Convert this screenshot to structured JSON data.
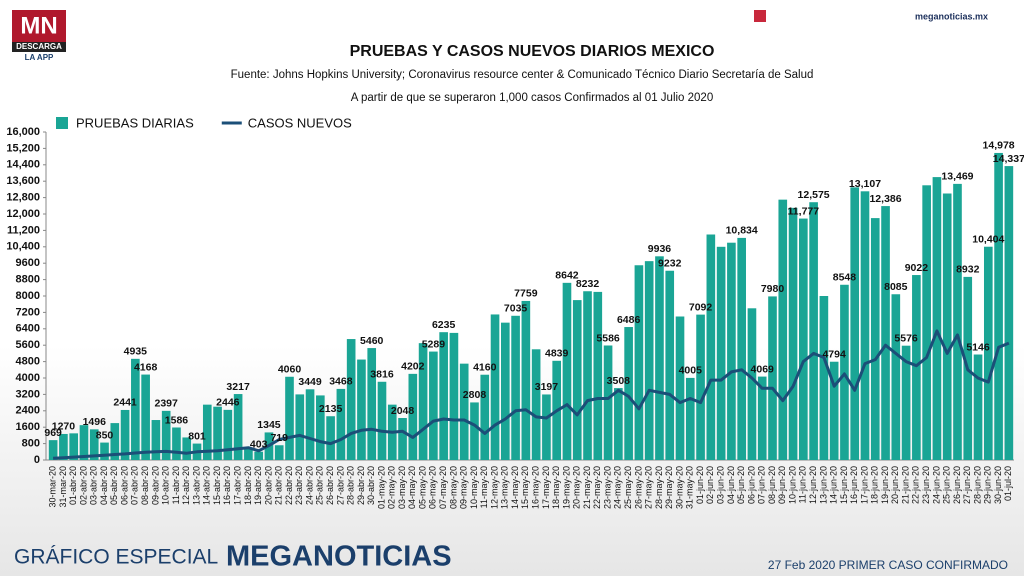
{
  "header": {
    "logo": "MN",
    "logo_band": "DESCARGA",
    "logo_sub": "LA APP",
    "site": "meganoticias.mx"
  },
  "chart_data": {
    "type": "bar",
    "title": "PRUEBAS Y CASOS NUEVOS DIARIOS MEXICO",
    "subtitle": "Fuente: Johns Hopkins University; Coronavirus resource center & Comunicado Técnico Diario Secretaría de Salud",
    "note": "A partir de que se superaron 1,000 casos Confirmados al 01 Julio 2020",
    "categories": [
      "30-mar-20",
      "31-mar-20",
      "01-abr-20",
      "02-abr-20",
      "03-abr-20",
      "04-abr-20",
      "05-abr-20",
      "06-abr-20",
      "07-abr-20",
      "08-abr-20",
      "09-abr-20",
      "10-abr-20",
      "11-abr-20",
      "12-abr-20",
      "13-abr-20",
      "14-abr-20",
      "15-abr-20",
      "16-abr-20",
      "17-abr-20",
      "18-abr-20",
      "19-abr-20",
      "20-abr-20",
      "21-abr-20",
      "22-abr-20",
      "23-abr-20",
      "24-abr-20",
      "25-abr-20",
      "26-abr-20",
      "27-abr-20",
      "28-abr-20",
      "29-abr-20",
      "30-abr-20",
      "01-may-20",
      "02-may-20",
      "03-may-20",
      "04-may-20",
      "05-may-20",
      "06-may-20",
      "07-may-20",
      "08-may-20",
      "09-may-20",
      "10-may-20",
      "11-may-20",
      "12-may-20",
      "13-may-20",
      "14-may-20",
      "15-may-20",
      "16-may-20",
      "17-may-20",
      "18-may-20",
      "19-may-20",
      "20-may-20",
      "21-may-20",
      "22-may-20",
      "23-may-20",
      "24-may-20",
      "25-may-20",
      "26-may-20",
      "27-may-20",
      "28-may-20",
      "29-may-20",
      "30-may-20",
      "31-may-20",
      "01-jun-20",
      "02-jun-20",
      "03-jun-20",
      "04-jun-20",
      "05-jun-20",
      "06-jun-20",
      "07-jun-20",
      "08-jun-20",
      "09-jun-20",
      "10-jun-20",
      "11-jun-20",
      "12-jun-20",
      "13-jun-20",
      "14-jun-20",
      "15-jun-20",
      "16-jun-20",
      "17-jun-20",
      "18-jun-20",
      "19-jun-20",
      "20-jun-20",
      "21-jun-20",
      "22-jun-20",
      "23-jun-20",
      "24-jun-20",
      "25-jun-20",
      "26-jun-20",
      "27-jun-20",
      "28-jun-20",
      "29-jun-20",
      "30-jun-20",
      "01-jul-20"
    ],
    "series": [
      {
        "name": "PRUEBAS DIARIAS",
        "color": "#1aa595",
        "type": "bar",
        "values": [
          969,
          1270,
          1300,
          1700,
          1496,
          850,
          1800,
          2441,
          4935,
          4168,
          1950,
          2397,
          1586,
          1100,
          801,
          2700,
          2600,
          2446,
          3217,
          600,
          403,
          1345,
          719,
          4060,
          3200,
          3449,
          3150,
          2135,
          3468,
          5900,
          4900,
          5460,
          3816,
          2700,
          2048,
          4202,
          5700,
          5289,
          6235,
          6200,
          4700,
          2808,
          4160,
          7100,
          6700,
          7035,
          7759,
          5400,
          3197,
          4839,
          8642,
          7800,
          8232,
          8200,
          5586,
          3508,
          6486,
          9500,
          9700,
          9936,
          9232,
          7000,
          4005,
          7092,
          11000,
          10400,
          10600,
          10834,
          7400,
          4069,
          7980,
          12700,
          12300,
          11777,
          12575,
          8000,
          4794,
          8548,
          13300,
          13107,
          11800,
          12386,
          8085,
          5576,
          9022,
          13400,
          13800,
          13000,
          13469,
          8932,
          5146,
          10404,
          14978,
          14337
        ],
        "value_labels": [
          "969",
          "1270",
          null,
          null,
          "1496",
          "850",
          null,
          "2441",
          "4935",
          "4168",
          null,
          "2397",
          "1586",
          null,
          "801",
          null,
          null,
          "2446",
          "3217",
          null,
          "403",
          "1345",
          "719",
          "4060",
          null,
          "3449",
          null,
          "2135",
          "3468",
          null,
          null,
          "5460",
          "3816",
          null,
          "2048",
          "4202",
          null,
          "5289",
          "6235",
          null,
          null,
          "2808",
          "4160",
          null,
          null,
          "7035",
          "7759",
          null,
          "3197",
          "4839",
          "8642",
          null,
          "8232",
          null,
          "5586",
          "3508",
          "6486",
          null,
          null,
          "9936",
          "9232",
          null,
          "4005",
          "7092",
          null,
          null,
          null,
          "10,834",
          null,
          "4069",
          "7980",
          null,
          null,
          "11,777",
          "12,575",
          null,
          "4794",
          "8548",
          null,
          "13,107",
          null,
          "12,386",
          "8085",
          "5576",
          "9022",
          null,
          null,
          null,
          "13,469",
          "8932",
          "5146",
          "10,404",
          "14,978",
          "14,337"
        ]
      },
      {
        "name": "CASOS NUEVOS",
        "color": "#1b4f78",
        "type": "line",
        "values": [
          90,
          110,
          140,
          170,
          200,
          230,
          270,
          300,
          340,
          380,
          400,
          420,
          380,
          330,
          400,
          430,
          450,
          500,
          550,
          600,
          450,
          700,
          1000,
          1100,
          1200,
          1050,
          900,
          800,
          1000,
          1300,
          1450,
          1500,
          1400,
          1350,
          1400,
          1100,
          1500,
          1900,
          2000,
          1950,
          1950,
          1700,
          1300,
          1700,
          2000,
          2400,
          2450,
          2100,
          2050,
          2400,
          2700,
          2200,
          2900,
          3000,
          3000,
          3400,
          3100,
          2500,
          3400,
          3300,
          3200,
          2800,
          3000,
          2800,
          3900,
          3900,
          4300,
          4400,
          4000,
          3500,
          3500,
          2900,
          3600,
          4800,
          5200,
          5000,
          3600,
          4200,
          3400,
          4700,
          4900,
          5600,
          5200,
          4800,
          4600,
          5000,
          6300,
          5200,
          6100,
          4400,
          4000,
          3800,
          5500,
          5700
        ]
      }
    ],
    "ylim": [
      0,
      16000
    ],
    "yticks": [
      0,
      800,
      1600,
      2400,
      3200,
      4000,
      4800,
      5600,
      6400,
      7200,
      8000,
      8800,
      9600,
      {
        "value": 10400,
        "label": "10,400"
      },
      {
        "value": 11200,
        "label": "11,200"
      },
      {
        "value": 12000,
        "label": "12,000"
      },
      {
        "value": 12800,
        "label": "12,800"
      },
      {
        "value": 13600,
        "label": "13,600"
      },
      {
        "value": 14400,
        "label": "14,400"
      },
      {
        "value": 15200,
        "label": "15,200"
      },
      {
        "value": 16000,
        "label": "16,000"
      }
    ],
    "legend": "top-left"
  },
  "footer": {
    "left": "GRÁFICO ESPECIAL",
    "brand": "MEGANOTICIAS",
    "right": "27 Feb 2020 PRIMER CASO CONFIRMADO"
  }
}
